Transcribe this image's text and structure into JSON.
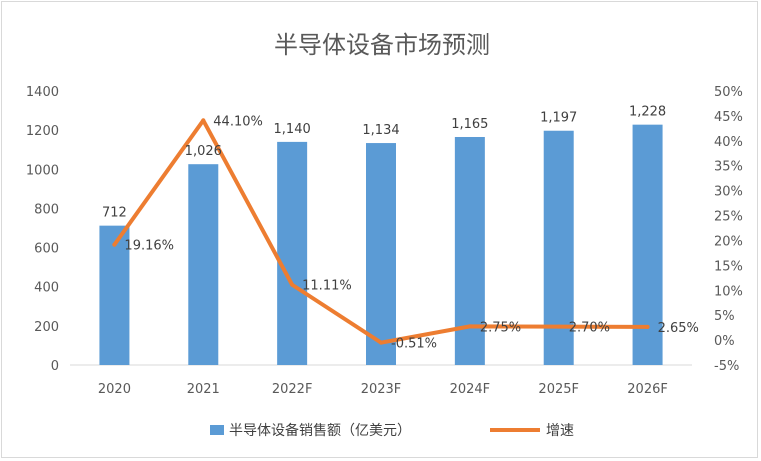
{
  "chart_data": {
    "type": "bar",
    "title": "半导体设备市场预测",
    "categories": [
      "2020",
      "2021",
      "2022F",
      "2023F",
      "2024F",
      "2025F",
      "2026F"
    ],
    "series": [
      {
        "name": "半导体设备销售额（亿美元）",
        "type": "bar",
        "axis": "left",
        "values": [
          712,
          1026,
          1140,
          1134,
          1165,
          1197,
          1228
        ],
        "labels": [
          "712",
          "1,026",
          "1,140",
          "1,134",
          "1,165",
          "1,197",
          "1,228"
        ],
        "color": "#5b9bd5"
      },
      {
        "name": "增速",
        "type": "line",
        "axis": "right",
        "values": [
          19.16,
          44.1,
          11.11,
          -0.51,
          2.75,
          2.7,
          2.65
        ],
        "labels": [
          "19.16%",
          "44.10%",
          "11.11%",
          "-0.51%",
          "2.75%",
          "2.70%",
          "2.65%"
        ],
        "color": "#ed7d31"
      }
    ],
    "y_left": {
      "min": 0,
      "max": 1400,
      "ticks": [
        "0",
        "200",
        "400",
        "600",
        "800",
        "1000",
        "1200",
        "1400"
      ]
    },
    "y_right": {
      "min": -5,
      "max": 50,
      "ticks": [
        "-5%",
        "0%",
        "5%",
        "10%",
        "15%",
        "20%",
        "25%",
        "30%",
        "35%",
        "40%",
        "45%",
        "50%"
      ]
    },
    "grid": false,
    "legend_position": "bottom"
  }
}
